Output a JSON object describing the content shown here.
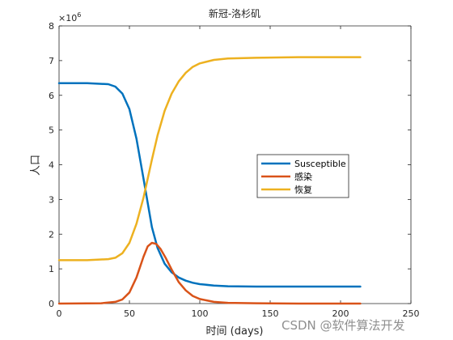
{
  "chart_data": {
    "type": "line",
    "title": "新冠-洛杉矶",
    "xlabel": "时间 (days)",
    "ylabel": "人口",
    "y_exponent_label": "×10",
    "y_exponent_power": "6",
    "xlim": [
      0,
      250
    ],
    "ylim": [
      0,
      8
    ],
    "x_ticks": [
      0,
      50,
      100,
      150,
      200,
      250
    ],
    "y_ticks": [
      0,
      1,
      2,
      3,
      4,
      5,
      6,
      7,
      8
    ],
    "y_scale_factor": 1000000,
    "grid": false,
    "legend_position": "center-right",
    "series": [
      {
        "name": "Susceptible",
        "color": "#0072BD",
        "x": [
          0,
          20,
          35,
          40,
          45,
          50,
          55,
          60,
          63,
          66,
          70,
          75,
          80,
          85,
          90,
          95,
          100,
          110,
          120,
          140,
          170,
          214
        ],
        "y": [
          6.35,
          6.35,
          6.32,
          6.25,
          6.05,
          5.6,
          4.75,
          3.6,
          2.9,
          2.2,
          1.6,
          1.15,
          0.9,
          0.75,
          0.66,
          0.6,
          0.56,
          0.52,
          0.5,
          0.49,
          0.49,
          0.49
        ]
      },
      {
        "name": "感染",
        "color": "#D95319",
        "x": [
          0,
          30,
          40,
          45,
          50,
          55,
          60,
          63,
          66,
          69,
          72,
          76,
          80,
          85,
          90,
          95,
          100,
          110,
          120,
          140,
          170,
          214
        ],
        "y": [
          0.0,
          0.01,
          0.05,
          0.12,
          0.32,
          0.75,
          1.35,
          1.65,
          1.75,
          1.72,
          1.58,
          1.3,
          0.98,
          0.62,
          0.38,
          0.22,
          0.13,
          0.05,
          0.02,
          0.01,
          0.0,
          0.0
        ]
      },
      {
        "name": "恢复",
        "color": "#EDB120",
        "x": [
          0,
          20,
          35,
          40,
          45,
          50,
          55,
          60,
          63,
          66,
          70,
          75,
          80,
          85,
          90,
          95,
          100,
          110,
          120,
          140,
          170,
          214
        ],
        "y": [
          1.25,
          1.25,
          1.28,
          1.32,
          1.45,
          1.75,
          2.3,
          3.05,
          3.6,
          4.15,
          4.85,
          5.55,
          6.05,
          6.4,
          6.65,
          6.82,
          6.92,
          7.02,
          7.06,
          7.08,
          7.1,
          7.1
        ]
      }
    ]
  },
  "watermark": "CSDN @软件算法开发"
}
